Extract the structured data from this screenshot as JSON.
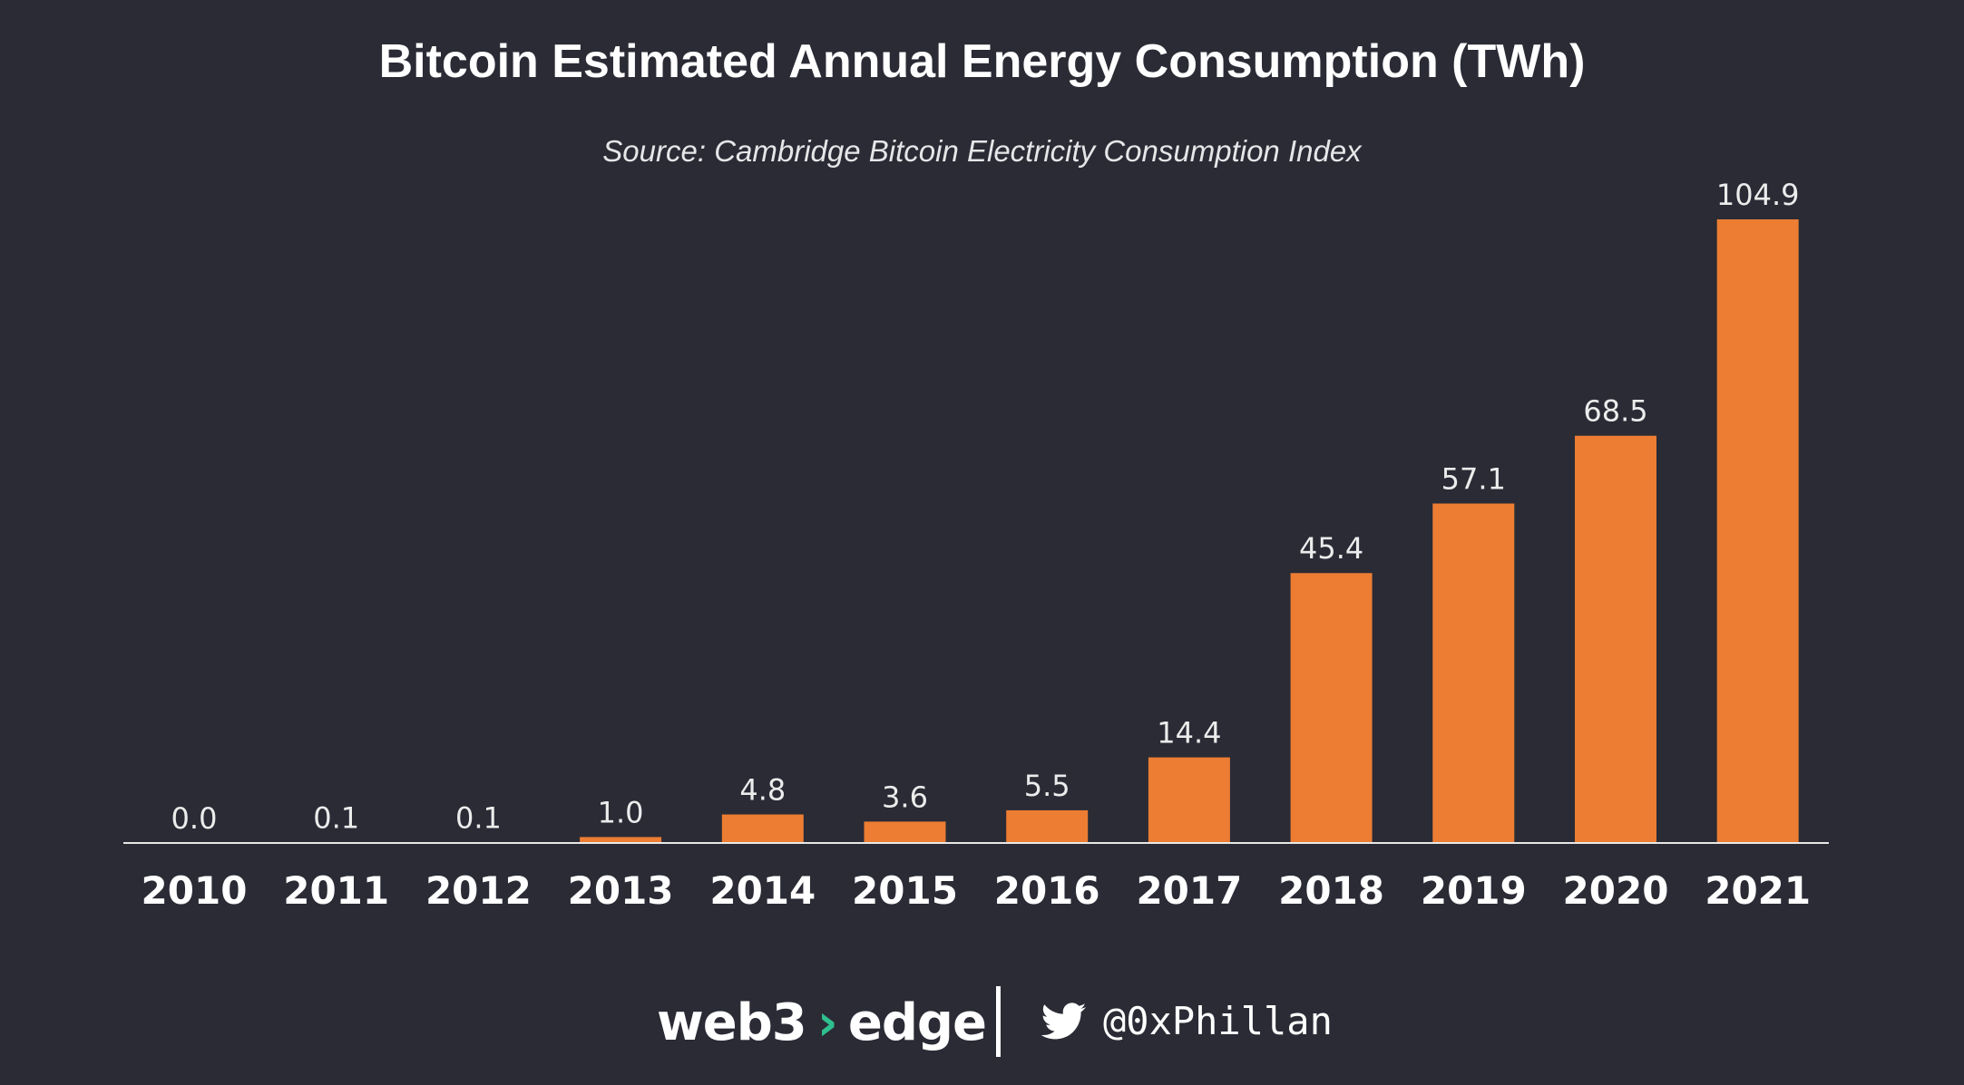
{
  "header": {
    "title": "Bitcoin Estimated Annual Energy Consumption (TWh)",
    "subtitle": "Source: Cambridge Bitcoin Electricity Consumption Index"
  },
  "chart_data": {
    "type": "bar",
    "title": "Bitcoin Estimated Annual Energy Consumption (TWh)",
    "subtitle": "Source: Cambridge Bitcoin Electricity Consumption Index",
    "xlabel": "",
    "ylabel": "",
    "categories": [
      "2010",
      "2011",
      "2012",
      "2013",
      "2014",
      "2015",
      "2016",
      "2017",
      "2018",
      "2019",
      "2020",
      "2021"
    ],
    "values": [
      0.0,
      0.1,
      0.1,
      1.0,
      4.8,
      3.6,
      5.5,
      14.4,
      45.4,
      57.1,
      68.5,
      104.9
    ],
    "value_labels": [
      "0.0",
      "0.1",
      "0.1",
      "1.0",
      "4.8",
      "3.6",
      "5.5",
      "14.4",
      "45.4",
      "57.1",
      "68.5",
      "104.9"
    ],
    "ylim": [
      0,
      104.9
    ],
    "grid": false,
    "legend": "none",
    "bar_color": "#ec7d33",
    "background_color": "#2a2b35"
  },
  "footer": {
    "brand_left": "web3",
    "brand_arrow": "›",
    "brand_right": "edge",
    "brand_accent_color": "#2fbf8f",
    "social_icon": "twitter-bird-icon",
    "handle": "@0xPhillan"
  }
}
